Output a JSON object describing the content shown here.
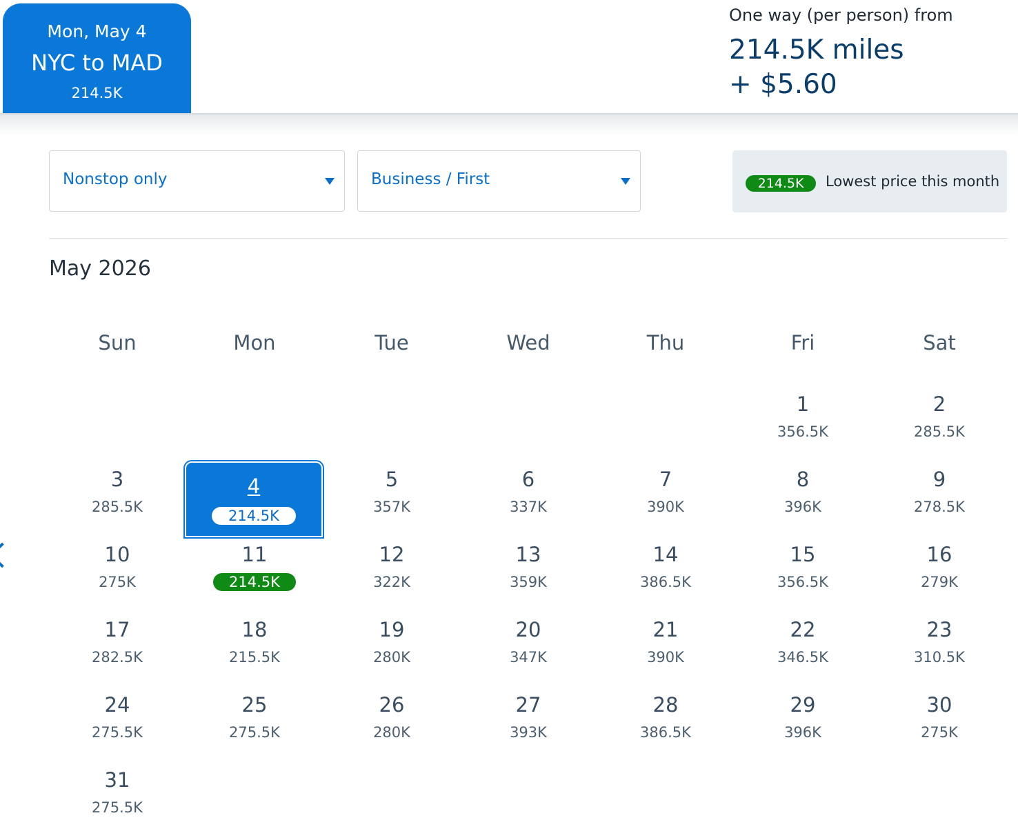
{
  "selected_flight": {
    "date": "Mon, May 4",
    "route": "NYC to MAD",
    "price": "214.5K"
  },
  "fare_summary": {
    "label": "One way (per person) from",
    "miles": "214.5K miles",
    "tax": "+ $5.60"
  },
  "filters": {
    "stops": "Nonstop only",
    "cabin": "Business / First"
  },
  "legend": {
    "badge": "214.5K",
    "text": "Lowest price this month",
    "lowest_color": "#0f8a14"
  },
  "calendar": {
    "month": "May 2026",
    "weekdays": [
      "Sun",
      "Mon",
      "Tue",
      "Wed",
      "Thu",
      "Fri",
      "Sat"
    ],
    "selected_day": "4",
    "days": [
      {
        "day": "1",
        "price": "356.5K"
      },
      {
        "day": "2",
        "price": "285.5K"
      },
      {
        "day": "3",
        "price": "285.5K"
      },
      {
        "day": "4",
        "price": "214.5K"
      },
      {
        "day": "5",
        "price": "357K"
      },
      {
        "day": "6",
        "price": "337K"
      },
      {
        "day": "7",
        "price": "390K"
      },
      {
        "day": "8",
        "price": "396K"
      },
      {
        "day": "9",
        "price": "278.5K"
      },
      {
        "day": "10",
        "price": "275K"
      },
      {
        "day": "11",
        "price": "214.5K"
      },
      {
        "day": "12",
        "price": "322K"
      },
      {
        "day": "13",
        "price": "359K"
      },
      {
        "day": "14",
        "price": "386.5K"
      },
      {
        "day": "15",
        "price": "356.5K"
      },
      {
        "day": "16",
        "price": "279K"
      },
      {
        "day": "17",
        "price": "282.5K"
      },
      {
        "day": "18",
        "price": "215.5K"
      },
      {
        "day": "19",
        "price": "280K"
      },
      {
        "day": "20",
        "price": "347K"
      },
      {
        "day": "21",
        "price": "390K"
      },
      {
        "day": "22",
        "price": "346.5K"
      },
      {
        "day": "23",
        "price": "310.5K"
      },
      {
        "day": "24",
        "price": "275.5K"
      },
      {
        "day": "25",
        "price": "275.5K"
      },
      {
        "day": "26",
        "price": "280K"
      },
      {
        "day": "27",
        "price": "393K"
      },
      {
        "day": "28",
        "price": "386.5K"
      },
      {
        "day": "29",
        "price": "396K"
      },
      {
        "day": "30",
        "price": "275K"
      },
      {
        "day": "31",
        "price": "275.5K"
      }
    ],
    "lowest_days": [
      "11"
    ]
  },
  "nav": {
    "prev_icon": "chevron-left-icon"
  }
}
